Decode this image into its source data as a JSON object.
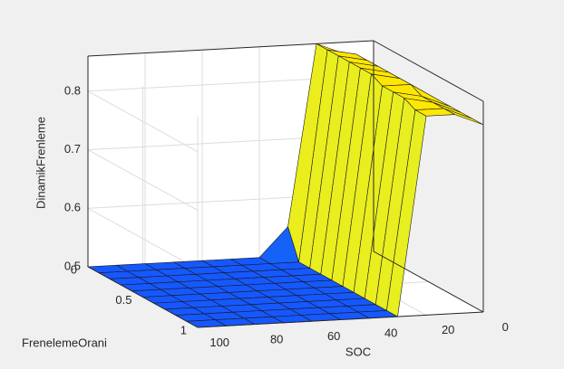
{
  "chart_data": {
    "type": "surface",
    "xlabel": "SOC",
    "ylabel": "FrenelemeOrani",
    "zlabel": "DinamikFrenleme",
    "x": [
      0,
      10,
      20,
      30,
      40,
      50,
      60,
      70,
      80,
      90,
      100
    ],
    "y": [
      0,
      0.1,
      0.2,
      0.3,
      0.4,
      0.5,
      0.6,
      0.7,
      0.8,
      0.9,
      1
    ],
    "z": [
      [
        0.8,
        0.84,
        0.86,
        0.55,
        0.5,
        0.5,
        0.5,
        0.5,
        0.5,
        0.5,
        0.5
      ],
      [
        0.8,
        0.85,
        0.86,
        0.5,
        0.5,
        0.5,
        0.5,
        0.5,
        0.5,
        0.5,
        0.5
      ],
      [
        0.8,
        0.85,
        0.86,
        0.5,
        0.5,
        0.5,
        0.5,
        0.5,
        0.5,
        0.5,
        0.5
      ],
      [
        0.81,
        0.85,
        0.86,
        0.5,
        0.5,
        0.5,
        0.5,
        0.5,
        0.5,
        0.5,
        0.5
      ],
      [
        0.82,
        0.85,
        0.86,
        0.5,
        0.5,
        0.5,
        0.5,
        0.5,
        0.5,
        0.5,
        0.5
      ],
      [
        0.82,
        0.85,
        0.86,
        0.5,
        0.5,
        0.5,
        0.5,
        0.5,
        0.5,
        0.5,
        0.5
      ],
      [
        0.82,
        0.85,
        0.85,
        0.5,
        0.5,
        0.5,
        0.5,
        0.5,
        0.5,
        0.5,
        0.5
      ],
      [
        0.82,
        0.84,
        0.85,
        0.5,
        0.5,
        0.5,
        0.5,
        0.5,
        0.5,
        0.5,
        0.5
      ],
      [
        0.82,
        0.84,
        0.85,
        0.5,
        0.5,
        0.5,
        0.5,
        0.5,
        0.5,
        0.5,
        0.5
      ],
      [
        0.82,
        0.84,
        0.84,
        0.5,
        0.5,
        0.5,
        0.5,
        0.5,
        0.5,
        0.5,
        0.5
      ],
      [
        0.82,
        0.84,
        0.84,
        0.5,
        0.5,
        0.5,
        0.5,
        0.5,
        0.5,
        0.5,
        0.5
      ]
    ],
    "xlim": [
      0,
      100
    ],
    "ylim": [
      0,
      1
    ],
    "zlim": [
      0.5,
      0.86
    ],
    "xticks": [
      0,
      20,
      40,
      60,
      80,
      100
    ],
    "yticks": [
      0,
      0.5,
      1
    ],
    "zticks": [
      0.5,
      0.6,
      0.7,
      0.8
    ],
    "grid": true
  }
}
